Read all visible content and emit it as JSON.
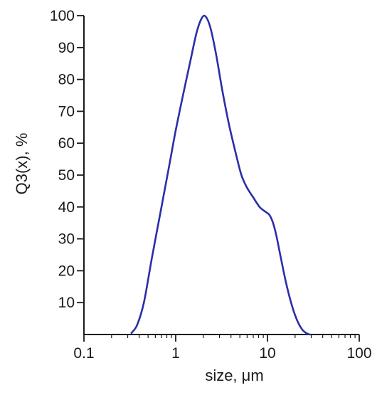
{
  "chart_data": {
    "type": "line",
    "title": "",
    "xlabel": "size, μm",
    "ylabel": "Q3(x), %",
    "x_scale": "log",
    "xlim": [
      0.1,
      100
    ],
    "ylim": [
      0,
      100
    ],
    "x_ticks": [
      {
        "value": 0.1,
        "label": "0.1"
      },
      {
        "value": 1,
        "label": "1"
      },
      {
        "value": 10,
        "label": "10"
      },
      {
        "value": 100,
        "label": "100"
      }
    ],
    "y_ticks": [
      {
        "value": 10,
        "label": "10"
      },
      {
        "value": 20,
        "label": "20"
      },
      {
        "value": 30,
        "label": "30"
      },
      {
        "value": 40,
        "label": "40"
      },
      {
        "value": 50,
        "label": "50"
      },
      {
        "value": 60,
        "label": "60"
      },
      {
        "value": 70,
        "label": "70"
      },
      {
        "value": 80,
        "label": "80"
      },
      {
        "value": 90,
        "label": "90"
      },
      {
        "value": 100,
        "label": "100"
      }
    ],
    "grid": false,
    "series": [
      {
        "color": "#2a2fa8",
        "x": [
          0.33,
          0.38,
          0.45,
          0.55,
          0.7,
          0.85,
          1.0,
          1.2,
          1.45,
          1.7,
          1.95,
          2.15,
          2.4,
          2.75,
          3.2,
          3.8,
          4.5,
          5.2,
          6.0,
          7.0,
          8.2,
          9.5,
          10.5,
          11.5,
          12.5,
          14.0,
          16.0,
          18.5,
          21.0,
          24.0,
          27.0,
          29.0
        ],
        "y": [
          0.5,
          3,
          10,
          24,
          40,
          53,
          64,
          75,
          86,
          95,
          99.5,
          99.5,
          96,
          88,
          77,
          66,
          57,
          50,
          46,
          43,
          40,
          38.5,
          37.5,
          35,
          31,
          24,
          16,
          9,
          4.5,
          1.5,
          0.3,
          0
        ]
      }
    ]
  }
}
